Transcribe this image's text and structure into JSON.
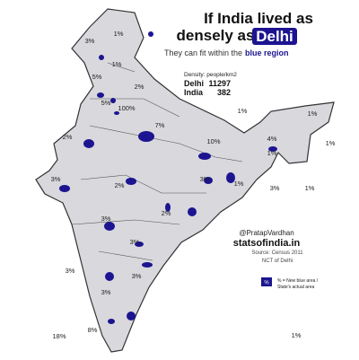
{
  "title": {
    "line1": "If India lived as",
    "line2": "densely as",
    "highlight": "Delhi"
  },
  "subtitle": {
    "text": "They can fit within the",
    "emphasis": "blue region"
  },
  "density": {
    "heading": "Density: people/km2",
    "rows": [
      {
        "name": "Delhi",
        "value": 11297
      },
      {
        "name": "India",
        "value": 382
      }
    ]
  },
  "region_labels": [
    "1%",
    "3%",
    "1%",
    "5%",
    "2%",
    "5%",
    "100%",
    "1%",
    "1%",
    "7%",
    "4%",
    "1%",
    "1%",
    "10%",
    "2%",
    "3%",
    "2%",
    "3%",
    "1%",
    "3%",
    "1%",
    "2%",
    "3%",
    "3%",
    "3%",
    "3%",
    "3%",
    "8%",
    "18%",
    "1%"
  ],
  "credits": {
    "handle": "@PratapVardhan",
    "site": "statsofindia.in",
    "source": "Source: Census 2011",
    "region": "NCT of Delhi"
  },
  "legend": {
    "symbol": "%",
    "lines": [
      "% = New blue area /",
      "State's actual area"
    ]
  }
}
